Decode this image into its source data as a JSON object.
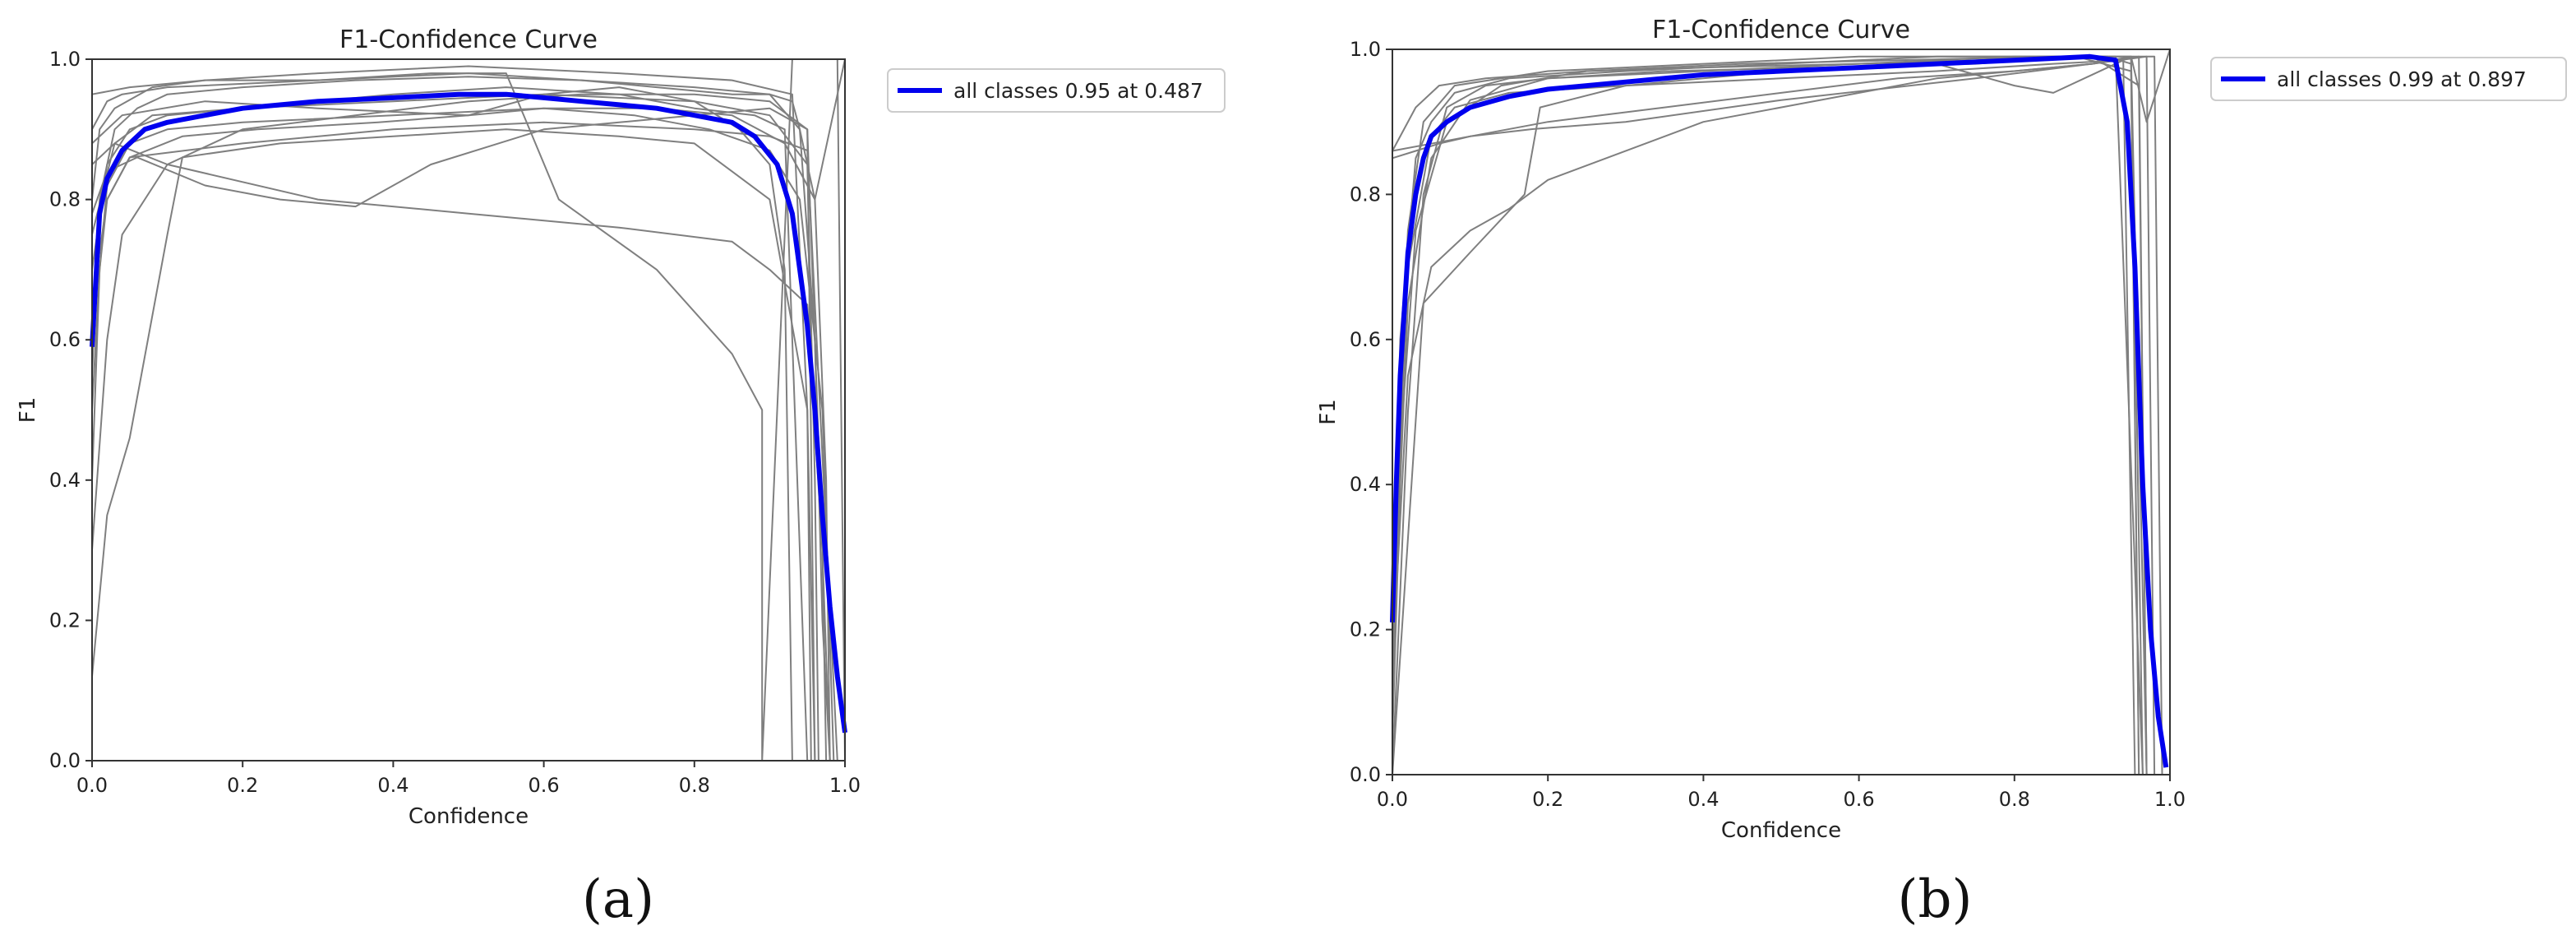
{
  "colors": {
    "all_classes": "#0000ee",
    "class_curves": "#7f7f7f",
    "axes": "#333333",
    "legend_border": "#cccccc"
  },
  "chart_data": [
    {
      "type": "line",
      "panel_label": "(a)",
      "title": "F1-Confidence Curve",
      "xlabel": "Confidence",
      "ylabel": "F1",
      "xlim": [
        0,
        1
      ],
      "ylim": [
        0,
        1
      ],
      "xticks": [
        "0.0",
        "0.2",
        "0.4",
        "0.6",
        "0.8",
        "1.0"
      ],
      "yticks": [
        "0.0",
        "0.2",
        "0.4",
        "0.6",
        "0.8",
        "1.0"
      ],
      "grid": false,
      "legend_position": "outside-right-top",
      "legend": [
        "all classes 0.95 at 0.487"
      ],
      "series": [
        {
          "name": "all classes 0.95 at 0.487",
          "highlight": true,
          "x": [
            0.0,
            0.01,
            0.02,
            0.04,
            0.07,
            0.1,
            0.15,
            0.2,
            0.3,
            0.4,
            0.487,
            0.55,
            0.6,
            0.65,
            0.7,
            0.75,
            0.8,
            0.85,
            0.88,
            0.91,
            0.93,
            0.95,
            0.96,
            0.97,
            0.98,
            0.99,
            1.0
          ],
          "y": [
            0.59,
            0.78,
            0.83,
            0.87,
            0.9,
            0.91,
            0.92,
            0.93,
            0.94,
            0.945,
            0.95,
            0.95,
            0.945,
            0.94,
            0.935,
            0.93,
            0.92,
            0.91,
            0.89,
            0.85,
            0.78,
            0.62,
            0.5,
            0.35,
            0.22,
            0.12,
            0.04
          ]
        },
        {
          "x": [
            0.0,
            0.01,
            0.03,
            0.06,
            0.1,
            0.2,
            0.35,
            0.5,
            0.65,
            0.8,
            0.9,
            0.94,
            0.96,
            0.97,
            0.98
          ],
          "y": [
            0.55,
            0.8,
            0.9,
            0.93,
            0.95,
            0.96,
            0.97,
            0.975,
            0.97,
            0.96,
            0.95,
            0.9,
            0.6,
            0.2,
            0.0
          ]
        },
        {
          "x": [
            0.0,
            0.02,
            0.05,
            0.1,
            0.2,
            0.4,
            0.6,
            0.8,
            0.9,
            0.95,
            0.96,
            0.965
          ],
          "y": [
            0.7,
            0.85,
            0.9,
            0.92,
            0.93,
            0.94,
            0.95,
            0.94,
            0.92,
            0.85,
            0.4,
            0.0
          ]
        },
        {
          "x": [
            0.0,
            0.01,
            0.03,
            0.08,
            0.15,
            0.3,
            0.5,
            0.7,
            0.85,
            0.93,
            0.95,
            0.955
          ],
          "y": [
            0.8,
            0.9,
            0.93,
            0.96,
            0.97,
            0.98,
            0.99,
            0.98,
            0.97,
            0.95,
            0.5,
            0.0
          ]
        },
        {
          "x": [
            0.0,
            0.02,
            0.04,
            0.1,
            0.2,
            0.35,
            0.5,
            0.65,
            0.8,
            0.9,
            0.95,
            0.97,
            0.975
          ],
          "y": [
            0.3,
            0.6,
            0.75,
            0.85,
            0.9,
            0.92,
            0.94,
            0.95,
            0.95,
            0.94,
            0.9,
            0.3,
            0.0
          ]
        },
        {
          "x": [
            0.0,
            0.01,
            0.02,
            0.05,
            0.1,
            0.2,
            0.4,
            0.6,
            0.75,
            0.85,
            0.92,
            0.96,
            0.975,
            0.98
          ],
          "y": [
            0.4,
            0.7,
            0.82,
            0.88,
            0.9,
            0.91,
            0.92,
            0.93,
            0.93,
            0.92,
            0.88,
            0.8,
            0.4,
            0.0
          ]
        },
        {
          "x": [
            0.0,
            0.03,
            0.1,
            0.3,
            0.5,
            0.7,
            0.85,
            0.9,
            0.95,
            0.97,
            0.98
          ],
          "y": [
            0.85,
            0.88,
            0.85,
            0.8,
            0.78,
            0.76,
            0.74,
            0.7,
            0.65,
            0.3,
            0.0
          ]
        },
        {
          "x": [
            0.0,
            0.02,
            0.05,
            0.1,
            0.12,
            0.25,
            0.4,
            0.55,
            0.7,
            0.8,
            0.9,
            0.95,
            0.96
          ],
          "y": [
            0.12,
            0.35,
            0.46,
            0.75,
            0.86,
            0.88,
            0.89,
            0.9,
            0.89,
            0.88,
            0.8,
            0.5,
            0.0
          ]
        },
        {
          "x": [
            0.0,
            0.02,
            0.06,
            0.15,
            0.25,
            0.35,
            0.45,
            0.6,
            0.7,
            0.8,
            0.9,
            0.95,
            0.96
          ],
          "y": [
            0.78,
            0.84,
            0.86,
            0.82,
            0.8,
            0.79,
            0.85,
            0.9,
            0.91,
            0.92,
            0.93,
            0.9,
            0.0
          ]
        },
        {
          "x": [
            0.0,
            0.05,
            0.15,
            0.3,
            0.45,
            0.55,
            0.62,
            0.75,
            0.85,
            0.89,
            0.89,
            0.93,
            0.99,
            1.0
          ],
          "y": [
            0.95,
            0.96,
            0.97,
            0.97,
            0.98,
            0.98,
            0.8,
            0.7,
            0.58,
            0.5,
            0.0,
            1.0,
            1.0,
            0.0
          ]
        },
        {
          "x": [
            0.0,
            0.03,
            0.08,
            0.2,
            0.4,
            0.55,
            0.7,
            0.8,
            0.88,
            0.92,
            0.93,
            0.95
          ],
          "y": [
            0.75,
            0.88,
            0.92,
            0.93,
            0.95,
            0.96,
            0.95,
            0.93,
            0.92,
            0.9,
            0.6,
            0.0
          ]
        },
        {
          "x": [
            0.0,
            0.02,
            0.04,
            0.1,
            0.3,
            0.5,
            0.65,
            0.75,
            0.85,
            0.9,
            0.93,
            0.94,
            0.96,
            1.0
          ],
          "y": [
            0.9,
            0.94,
            0.95,
            0.96,
            0.97,
            0.98,
            0.97,
            0.96,
            0.95,
            0.95,
            0.94,
            0.9,
            0.8,
            1.0
          ]
        },
        {
          "x": [
            0.0,
            0.01,
            0.02,
            0.05,
            0.12,
            0.22,
            0.38,
            0.5,
            0.6,
            0.72,
            0.82,
            0.9,
            0.94,
            0.97,
            0.985
          ],
          "y": [
            0.5,
            0.7,
            0.8,
            0.86,
            0.89,
            0.9,
            0.91,
            0.92,
            0.93,
            0.92,
            0.9,
            0.87,
            0.8,
            0.5,
            0.0
          ]
        },
        {
          "x": [
            0.0,
            0.04,
            0.15,
            0.3,
            0.5,
            0.6,
            0.7,
            0.8,
            0.86,
            0.9,
            0.92,
            0.93
          ],
          "y": [
            0.88,
            0.92,
            0.94,
            0.93,
            0.92,
            0.95,
            0.96,
            0.94,
            0.9,
            0.85,
            0.7,
            0.0
          ]
        },
        {
          "x": [
            0.0,
            0.02,
            0.05,
            0.2,
            0.4,
            0.6,
            0.8,
            0.9,
            0.95,
            0.99
          ],
          "y": [
            0.65,
            0.8,
            0.86,
            0.88,
            0.9,
            0.91,
            0.9,
            0.89,
            0.87,
            0.0
          ]
        }
      ]
    },
    {
      "type": "line",
      "panel_label": "(b)",
      "title": "F1-Confidence Curve",
      "xlabel": "Confidence",
      "ylabel": "F1",
      "xlim": [
        0,
        1
      ],
      "ylim": [
        0,
        1
      ],
      "xticks": [
        "0.0",
        "0.2",
        "0.4",
        "0.6",
        "0.8",
        "1.0"
      ],
      "yticks": [
        "0.0",
        "0.2",
        "0.4",
        "0.6",
        "0.8",
        "1.0"
      ],
      "grid": false,
      "legend_position": "outside-right-top",
      "legend": [
        "all classes 0.99 at 0.897"
      ],
      "series": [
        {
          "name": "all classes 0.99 at 0.897",
          "highlight": true,
          "x": [
            0.0,
            0.005,
            0.01,
            0.02,
            0.03,
            0.04,
            0.05,
            0.07,
            0.1,
            0.15,
            0.2,
            0.3,
            0.4,
            0.5,
            0.6,
            0.7,
            0.8,
            0.897,
            0.93,
            0.945,
            0.955,
            0.965,
            0.975,
            0.985,
            0.995
          ],
          "y": [
            0.21,
            0.4,
            0.55,
            0.72,
            0.8,
            0.85,
            0.88,
            0.9,
            0.92,
            0.935,
            0.945,
            0.955,
            0.965,
            0.97,
            0.975,
            0.98,
            0.985,
            0.99,
            0.985,
            0.9,
            0.7,
            0.4,
            0.2,
            0.08,
            0.01
          ]
        },
        {
          "x": [
            0.0,
            0.02,
            0.04,
            0.07,
            0.12,
            0.2,
            0.4,
            0.6,
            0.8,
            0.92,
            0.95,
            0.965
          ],
          "y": [
            0.0,
            0.5,
            0.8,
            0.92,
            0.95,
            0.96,
            0.97,
            0.98,
            0.99,
            0.99,
            0.98,
            0.0
          ]
        },
        {
          "x": [
            0.0,
            0.01,
            0.03,
            0.05,
            0.08,
            0.15,
            0.3,
            0.5,
            0.7,
            0.9,
            0.96,
            0.97
          ],
          "y": [
            0.1,
            0.6,
            0.85,
            0.9,
            0.94,
            0.96,
            0.97,
            0.98,
            0.99,
            0.99,
            0.95,
            0.0
          ]
        },
        {
          "x": [
            0.0,
            0.02,
            0.05,
            0.1,
            0.15,
            0.2,
            0.4,
            0.7,
            0.9,
            0.95,
            0.96
          ],
          "y": [
            0.15,
            0.55,
            0.7,
            0.75,
            0.78,
            0.82,
            0.9,
            0.96,
            0.98,
            0.99,
            0.0
          ]
        },
        {
          "x": [
            0.0,
            0.03,
            0.06,
            0.1,
            0.18,
            0.3,
            0.5,
            0.75,
            0.9,
            0.97,
            0.98
          ],
          "y": [
            0.85,
            0.86,
            0.87,
            0.88,
            0.89,
            0.9,
            0.93,
            0.96,
            0.98,
            0.99,
            0.0
          ]
        },
        {
          "x": [
            0.0,
            0.01,
            0.02,
            0.05,
            0.1,
            0.2,
            0.35,
            0.55,
            0.75,
            0.88,
            0.95,
            0.96
          ],
          "y": [
            0.05,
            0.4,
            0.65,
            0.85,
            0.93,
            0.96,
            0.97,
            0.975,
            0.98,
            0.99,
            0.97,
            0.0
          ]
        },
        {
          "x": [
            0.0,
            0.04,
            0.1,
            0.17,
            0.19,
            0.3,
            0.5,
            0.7,
            0.8,
            0.85,
            0.95,
            0.97
          ],
          "y": [
            0.0,
            0.65,
            0.72,
            0.8,
            0.92,
            0.95,
            0.97,
            0.98,
            0.95,
            0.94,
            0.99,
            0.0
          ]
        },
        {
          "x": [
            0.0,
            0.03,
            0.06,
            0.12,
            0.25,
            0.4,
            0.6,
            0.75,
            0.85,
            0.95,
            0.98,
            0.99
          ],
          "y": [
            0.86,
            0.92,
            0.95,
            0.96,
            0.97,
            0.975,
            0.98,
            0.985,
            0.99,
            0.99,
            0.99,
            0.0
          ]
        },
        {
          "x": [
            0.0,
            0.02,
            0.05,
            0.08,
            0.15,
            0.3,
            0.5,
            0.7,
            0.85,
            0.94,
            0.955
          ],
          "y": [
            0.2,
            0.7,
            0.88,
            0.92,
            0.94,
            0.95,
            0.96,
            0.97,
            0.98,
            0.985,
            0.0
          ]
        },
        {
          "x": [
            0.0,
            0.05,
            0.1,
            0.2,
            0.35,
            0.5,
            0.65,
            0.8,
            0.9,
            0.96,
            0.97
          ],
          "y": [
            0.86,
            0.87,
            0.88,
            0.9,
            0.92,
            0.94,
            0.96,
            0.97,
            0.98,
            0.99,
            0.0
          ]
        },
        {
          "x": [
            0.0,
            0.01,
            0.03,
            0.07,
            0.14,
            0.25,
            0.45,
            0.65,
            0.85,
            0.93,
            0.965
          ],
          "y": [
            0.1,
            0.45,
            0.75,
            0.9,
            0.95,
            0.97,
            0.98,
            0.985,
            0.99,
            0.99,
            0.0
          ]
        },
        {
          "x": [
            0.0,
            0.02,
            0.04,
            0.08,
            0.2,
            0.4,
            0.6,
            0.8,
            0.9,
            0.95,
            0.97,
            1.0
          ],
          "y": [
            0.3,
            0.75,
            0.9,
            0.95,
            0.97,
            0.98,
            0.99,
            0.99,
            0.99,
            0.99,
            0.9,
            1.0
          ]
        }
      ]
    }
  ]
}
